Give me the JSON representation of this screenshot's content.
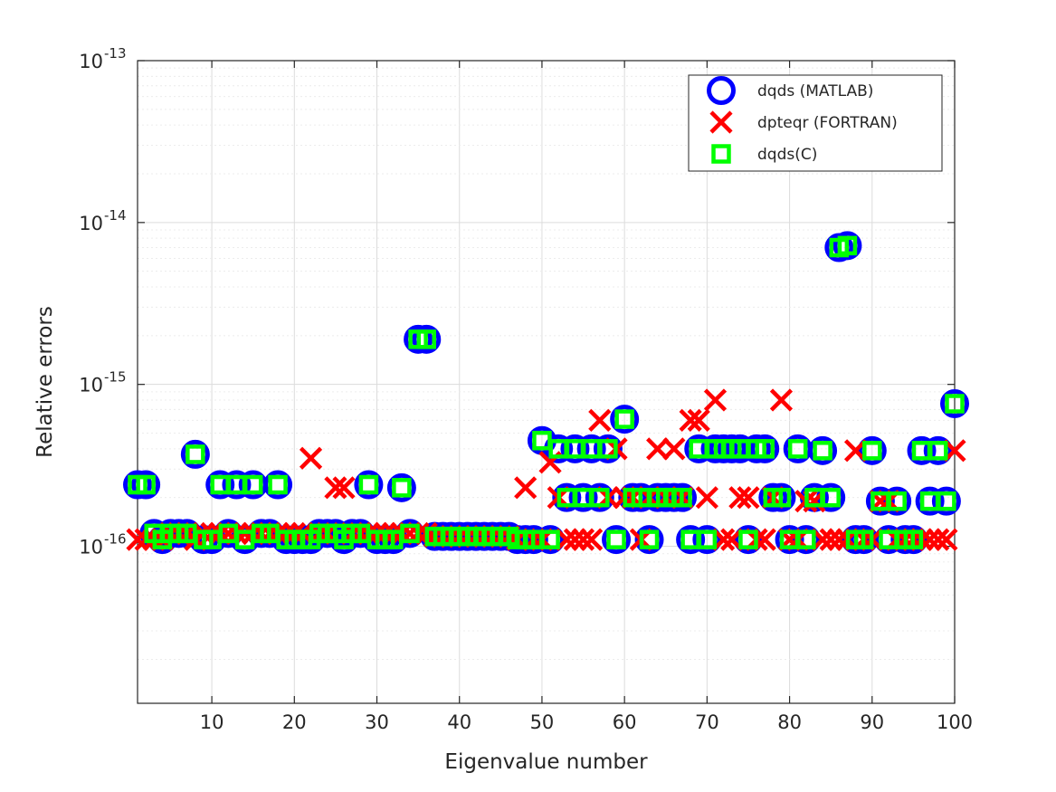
{
  "chart_data": {
    "type": "scatter",
    "xlabel": "Eigenvalue number",
    "ylabel": "Relative errors",
    "xlim": [
      1,
      100
    ],
    "ylim_exponent": [
      -16.97,
      -13
    ],
    "yscale": "log",
    "x_ticks": [
      10,
      20,
      30,
      40,
      50,
      60,
      70,
      80,
      90,
      100
    ],
    "y_ticks": [
      {
        "base": "10",
        "exp": "-16",
        "value": -16
      },
      {
        "base": "10",
        "exp": "-15",
        "value": -15
      },
      {
        "base": "10",
        "exp": "-14",
        "value": -14
      },
      {
        "base": "10",
        "exp": "-13",
        "value": -13
      }
    ],
    "grid": true,
    "legend_position": "top-right",
    "series": [
      {
        "name": "dqds (MATLAB)",
        "marker": "circle",
        "color": "#0000ff",
        "points": [
          [
            1,
            2.4e-16
          ],
          [
            2,
            2.4e-16
          ],
          [
            3,
            1.2e-16
          ],
          [
            4,
            1.1e-16
          ],
          [
            5,
            1.2e-16
          ],
          [
            6,
            1.2e-16
          ],
          [
            7,
            1.2e-16
          ],
          [
            8,
            3.7e-16
          ],
          [
            9,
            1.1e-16
          ],
          [
            10,
            1.1e-16
          ],
          [
            11,
            2.4e-16
          ],
          [
            12,
            1.2e-16
          ],
          [
            13,
            2.4e-16
          ],
          [
            14,
            1.1e-16
          ],
          [
            15,
            2.4e-16
          ],
          [
            16,
            1.2e-16
          ],
          [
            17,
            1.2e-16
          ],
          [
            18,
            2.4e-16
          ],
          [
            19,
            1.1e-16
          ],
          [
            20,
            1.1e-16
          ],
          [
            21,
            1.1e-16
          ],
          [
            22,
            1.1e-16
          ],
          [
            23,
            1.2e-16
          ],
          [
            24,
            1.2e-16
          ],
          [
            25,
            1.2e-16
          ],
          [
            26,
            1.1e-16
          ],
          [
            27,
            1.2e-16
          ],
          [
            28,
            1.2e-16
          ],
          [
            29,
            2.4e-16
          ],
          [
            30,
            1.1e-16
          ],
          [
            31,
            1.1e-16
          ],
          [
            32,
            1.1e-16
          ],
          [
            33,
            2.3e-16
          ],
          [
            34,
            1.2e-16
          ],
          [
            35,
            1.9e-15
          ],
          [
            36,
            1.9e-15
          ],
          [
            37,
            1.15e-16
          ],
          [
            38,
            1.15e-16
          ],
          [
            39,
            1.15e-16
          ],
          [
            40,
            1.15e-16
          ],
          [
            41,
            1.15e-16
          ],
          [
            42,
            1.15e-16
          ],
          [
            43,
            1.15e-16
          ],
          [
            44,
            1.15e-16
          ],
          [
            45,
            1.15e-16
          ],
          [
            46,
            1.15e-16
          ],
          [
            47,
            1.1e-16
          ],
          [
            48,
            1.1e-16
          ],
          [
            49,
            1.1e-16
          ],
          [
            50,
            4.5e-16
          ],
          [
            51,
            1.1e-16
          ],
          [
            52,
            4e-16
          ],
          [
            53,
            2e-16
          ],
          [
            54,
            4e-16
          ],
          [
            55,
            2e-16
          ],
          [
            56,
            4e-16
          ],
          [
            57,
            2e-16
          ],
          [
            58,
            4e-16
          ],
          [
            59,
            1.1e-16
          ],
          [
            60,
            6.1e-16
          ],
          [
            61,
            2e-16
          ],
          [
            62,
            2e-16
          ],
          [
            63,
            1.1e-16
          ],
          [
            64,
            2e-16
          ],
          [
            65,
            2e-16
          ],
          [
            66,
            2e-16
          ],
          [
            67,
            2e-16
          ],
          [
            68,
            1.1e-16
          ],
          [
            69,
            4e-16
          ],
          [
            70,
            1.1e-16
          ],
          [
            71,
            4e-16
          ],
          [
            72,
            4e-16
          ],
          [
            73,
            4e-16
          ],
          [
            74,
            4e-16
          ],
          [
            75,
            1.1e-16
          ],
          [
            76,
            4e-16
          ],
          [
            77,
            4e-16
          ],
          [
            78,
            2e-16
          ],
          [
            79,
            2e-16
          ],
          [
            80,
            1.1e-16
          ],
          [
            81,
            4e-16
          ],
          [
            82,
            1.1e-16
          ],
          [
            83,
            2e-16
          ],
          [
            84,
            3.9e-16
          ],
          [
            85,
            2e-16
          ],
          [
            86,
            7e-15
          ],
          [
            87,
            7.2e-15
          ],
          [
            88,
            1.1e-16
          ],
          [
            89,
            1.1e-16
          ],
          [
            90,
            3.9e-16
          ],
          [
            91,
            1.9e-16
          ],
          [
            92,
            1.1e-16
          ],
          [
            93,
            1.9e-16
          ],
          [
            94,
            1.1e-16
          ],
          [
            95,
            1.1e-16
          ],
          [
            96,
            3.9e-16
          ],
          [
            97,
            1.9e-16
          ],
          [
            98,
            3.9e-16
          ],
          [
            99,
            1.9e-16
          ],
          [
            100,
            7.6e-16
          ]
        ]
      },
      {
        "name": "dpteqr (FORTRAN)",
        "marker": "x",
        "color": "#ff0000",
        "points": [
          [
            1,
            1.1e-16
          ],
          [
            2,
            1.1e-16
          ],
          [
            3,
            1.1e-16
          ],
          [
            4,
            1.1e-16
          ],
          [
            5,
            1.2e-16
          ],
          [
            6,
            1.2e-16
          ],
          [
            7,
            1.2e-16
          ],
          [
            8,
            1.1e-16
          ],
          [
            9,
            1.2e-16
          ],
          [
            10,
            1.2e-16
          ],
          [
            11,
            1.2e-16
          ],
          [
            12,
            1.2e-16
          ],
          [
            13,
            1.2e-16
          ],
          [
            14,
            1.2e-16
          ],
          [
            15,
            1.2e-16
          ],
          [
            16,
            1.2e-16
          ],
          [
            17,
            1.2e-16
          ],
          [
            18,
            1.2e-16
          ],
          [
            19,
            1.2e-16
          ],
          [
            20,
            1.2e-16
          ],
          [
            21,
            1.2e-16
          ],
          [
            22,
            3.5e-16
          ],
          [
            23,
            1.2e-16
          ],
          [
            24,
            1.2e-16
          ],
          [
            25,
            2.3e-16
          ],
          [
            26,
            2.3e-16
          ],
          [
            27,
            1.2e-16
          ],
          [
            28,
            1.2e-16
          ],
          [
            29,
            1.2e-16
          ],
          [
            30,
            1.2e-16
          ],
          [
            31,
            1.2e-16
          ],
          [
            32,
            1.2e-16
          ],
          [
            33,
            1.2e-16
          ],
          [
            34,
            1.2e-16
          ],
          [
            35,
            1.2e-16
          ],
          [
            36,
            1.2e-16
          ],
          [
            37,
            1.15e-16
          ],
          [
            38,
            1.15e-16
          ],
          [
            39,
            1.15e-16
          ],
          [
            40,
            1.15e-16
          ],
          [
            41,
            1.15e-16
          ],
          [
            42,
            1.15e-16
          ],
          [
            43,
            1.15e-16
          ],
          [
            44,
            1.15e-16
          ],
          [
            45,
            1.15e-16
          ],
          [
            46,
            1.15e-16
          ],
          [
            47,
            1.1e-16
          ],
          [
            48,
            2.3e-16
          ],
          [
            49,
            1.1e-16
          ],
          [
            50,
            1.1e-16
          ],
          [
            51,
            3.3e-16
          ],
          [
            52,
            2e-16
          ],
          [
            53,
            1.1e-16
          ],
          [
            54,
            1.1e-16
          ],
          [
            55,
            1.1e-16
          ],
          [
            56,
            1.1e-16
          ],
          [
            57,
            6e-16
          ],
          [
            58,
            2e-16
          ],
          [
            59,
            4e-16
          ],
          [
            60,
            2e-16
          ],
          [
            61,
            2e-16
          ],
          [
            62,
            1.1e-16
          ],
          [
            63,
            2e-16
          ],
          [
            64,
            4e-16
          ],
          [
            65,
            2e-16
          ],
          [
            66,
            4e-16
          ],
          [
            67,
            2e-16
          ],
          [
            68,
            6e-16
          ],
          [
            69,
            6e-16
          ],
          [
            70,
            2e-16
          ],
          [
            71,
            8e-16
          ],
          [
            72,
            1.1e-16
          ],
          [
            73,
            1.1e-16
          ],
          [
            74,
            2e-16
          ],
          [
            75,
            2e-16
          ],
          [
            76,
            1.1e-16
          ],
          [
            77,
            1.1e-16
          ],
          [
            78,
            2e-16
          ],
          [
            79,
            8e-16
          ],
          [
            80,
            1.1e-16
          ],
          [
            81,
            1.1e-16
          ],
          [
            82,
            1.9e-16
          ],
          [
            83,
            1.9e-16
          ],
          [
            84,
            1.1e-16
          ],
          [
            85,
            1.1e-16
          ],
          [
            86,
            1.1e-16
          ],
          [
            87,
            1.1e-16
          ],
          [
            88,
            3.9e-16
          ],
          [
            89,
            1.1e-16
          ],
          [
            90,
            1.1e-16
          ],
          [
            91,
            1.9e-16
          ],
          [
            92,
            1.9e-16
          ],
          [
            93,
            1.1e-16
          ],
          [
            94,
            1.1e-16
          ],
          [
            95,
            1.1e-16
          ],
          [
            96,
            1.1e-16
          ],
          [
            97,
            1.1e-16
          ],
          [
            98,
            1.1e-16
          ],
          [
            99,
            1.1e-16
          ],
          [
            100,
            3.9e-16
          ]
        ]
      },
      {
        "name": "dqds(C)",
        "marker": "square",
        "color": "#00ff00",
        "points": [
          [
            1,
            2.4e-16
          ],
          [
            2,
            2.4e-16
          ],
          [
            3,
            1.2e-16
          ],
          [
            4,
            1.1e-16
          ],
          [
            5,
            1.2e-16
          ],
          [
            6,
            1.2e-16
          ],
          [
            7,
            1.2e-16
          ],
          [
            8,
            3.7e-16
          ],
          [
            9,
            1.1e-16
          ],
          [
            10,
            1.1e-16
          ],
          [
            11,
            2.4e-16
          ],
          [
            12,
            1.2e-16
          ],
          [
            13,
            2.4e-16
          ],
          [
            14,
            1.1e-16
          ],
          [
            15,
            2.4e-16
          ],
          [
            16,
            1.2e-16
          ],
          [
            17,
            1.2e-16
          ],
          [
            18,
            2.4e-16
          ],
          [
            19,
            1.1e-16
          ],
          [
            20,
            1.1e-16
          ],
          [
            21,
            1.1e-16
          ],
          [
            22,
            1.1e-16
          ],
          [
            23,
            1.2e-16
          ],
          [
            24,
            1.2e-16
          ],
          [
            25,
            1.2e-16
          ],
          [
            26,
            1.1e-16
          ],
          [
            27,
            1.2e-16
          ],
          [
            28,
            1.2e-16
          ],
          [
            29,
            2.4e-16
          ],
          [
            30,
            1.1e-16
          ],
          [
            31,
            1.1e-16
          ],
          [
            32,
            1.1e-16
          ],
          [
            33,
            2.3e-16
          ],
          [
            34,
            1.2e-16
          ],
          [
            35,
            1.9e-15
          ],
          [
            36,
            1.9e-15
          ],
          [
            37,
            1.15e-16
          ],
          [
            38,
            1.15e-16
          ],
          [
            39,
            1.15e-16
          ],
          [
            40,
            1.15e-16
          ],
          [
            41,
            1.15e-16
          ],
          [
            42,
            1.15e-16
          ],
          [
            43,
            1.15e-16
          ],
          [
            44,
            1.15e-16
          ],
          [
            45,
            1.15e-16
          ],
          [
            46,
            1.15e-16
          ],
          [
            47,
            1.1e-16
          ],
          [
            48,
            1.1e-16
          ],
          [
            49,
            1.1e-16
          ],
          [
            50,
            4.5e-16
          ],
          [
            51,
            1.1e-16
          ],
          [
            52,
            4e-16
          ],
          [
            53,
            2e-16
          ],
          [
            54,
            4e-16
          ],
          [
            55,
            2e-16
          ],
          [
            56,
            4e-16
          ],
          [
            57,
            2e-16
          ],
          [
            58,
            4e-16
          ],
          [
            59,
            1.1e-16
          ],
          [
            60,
            6.1e-16
          ],
          [
            61,
            2e-16
          ],
          [
            62,
            2e-16
          ],
          [
            63,
            1.1e-16
          ],
          [
            64,
            2e-16
          ],
          [
            65,
            2e-16
          ],
          [
            66,
            2e-16
          ],
          [
            67,
            2e-16
          ],
          [
            68,
            1.1e-16
          ],
          [
            69,
            4e-16
          ],
          [
            70,
            1.1e-16
          ],
          [
            71,
            4e-16
          ],
          [
            72,
            4e-16
          ],
          [
            73,
            4e-16
          ],
          [
            74,
            4e-16
          ],
          [
            75,
            1.1e-16
          ],
          [
            76,
            4e-16
          ],
          [
            77,
            4e-16
          ],
          [
            78,
            2e-16
          ],
          [
            79,
            2e-16
          ],
          [
            80,
            1.1e-16
          ],
          [
            81,
            4e-16
          ],
          [
            82,
            1.1e-16
          ],
          [
            83,
            2e-16
          ],
          [
            84,
            3.9e-16
          ],
          [
            85,
            2e-16
          ],
          [
            86,
            7e-15
          ],
          [
            87,
            7.2e-15
          ],
          [
            88,
            1.1e-16
          ],
          [
            89,
            1.1e-16
          ],
          [
            90,
            3.9e-16
          ],
          [
            91,
            1.9e-16
          ],
          [
            92,
            1.1e-16
          ],
          [
            93,
            1.9e-16
          ],
          [
            94,
            1.1e-16
          ],
          [
            95,
            1.1e-16
          ],
          [
            96,
            3.9e-16
          ],
          [
            97,
            1.9e-16
          ],
          [
            98,
            3.9e-16
          ],
          [
            99,
            1.9e-16
          ],
          [
            100,
            7.6e-16
          ]
        ]
      }
    ]
  }
}
